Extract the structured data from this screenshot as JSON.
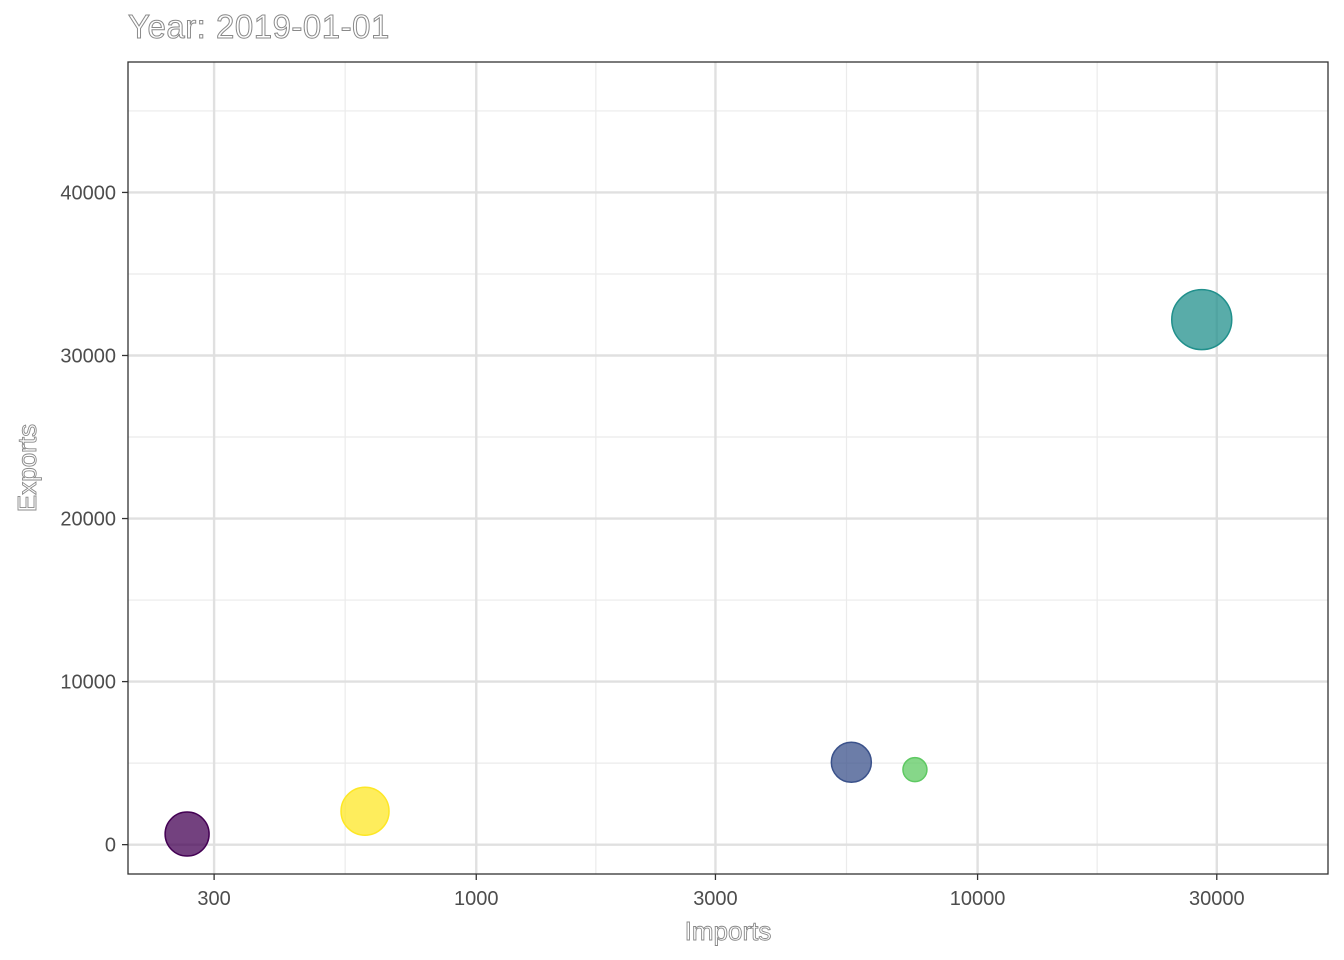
{
  "chart_data": {
    "type": "scatter",
    "title": "Year: 2019-01-01",
    "xlabel": "Imports",
    "ylabel": "Exports",
    "x_scale": "log10",
    "xlim": [
      202,
      50000
    ],
    "ylim": [
      -1800,
      48000
    ],
    "x_ticks": [
      300,
      1000,
      3000,
      10000,
      30000
    ],
    "x_tick_labels": [
      "300",
      "1000",
      "3000",
      "10000",
      "30000"
    ],
    "x_minor_ticks": [
      547.7,
      1732,
      5477,
      17320
    ],
    "y_ticks": [
      0,
      10000,
      20000,
      30000,
      40000
    ],
    "y_tick_labels": [
      "0",
      "10000",
      "20000",
      "30000",
      "40000"
    ],
    "y_minor_ticks": [
      5000,
      15000,
      25000,
      35000,
      45000
    ],
    "grid": true,
    "legend": "none",
    "points": [
      {
        "x": 265,
        "y": 650,
        "size": 22,
        "color": "#440154"
      },
      {
        "x": 600,
        "y": 2050,
        "size": 24,
        "color": "#FDE725"
      },
      {
        "x": 5600,
        "y": 5050,
        "size": 20,
        "color": "#3B528B"
      },
      {
        "x": 7500,
        "y": 4600,
        "size": 12,
        "color": "#5EC962"
      },
      {
        "x": 28000,
        "y": 32200,
        "size": 30,
        "color": "#21908C"
      }
    ]
  }
}
